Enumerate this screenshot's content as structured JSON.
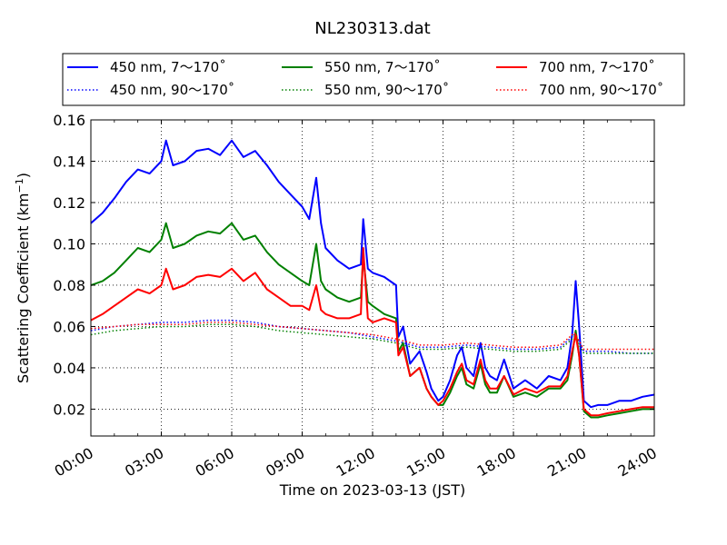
{
  "chart_data": {
    "type": "line",
    "title": "NL230313.dat",
    "xlabel": "Time on 2023-03-13 (JST)",
    "ylabel": "Scattering Coefficient (km",
    "ylabel_sup": "−1",
    "ylabel_tail": ")",
    "x_unit": "hour",
    "xlim": [
      0,
      24
    ],
    "ylim": [
      0.007,
      0.16
    ],
    "xticks": [
      0,
      3,
      6,
      9,
      12,
      15,
      18,
      21,
      24
    ],
    "xtick_labels": [
      "00:00",
      "03:00",
      "06:00",
      "09:00",
      "12:00",
      "15:00",
      "18:00",
      "21:00",
      "24:00"
    ],
    "yticks": [
      0.02,
      0.04,
      0.06,
      0.08,
      0.1,
      0.12,
      0.14,
      0.16
    ],
    "ytick_labels": [
      "0.02",
      "0.04",
      "0.06",
      "0.08",
      "0.10",
      "0.12",
      "0.14",
      "0.16"
    ],
    "grid": true,
    "legend_position": "top, above plot",
    "series": [
      {
        "name": "450 nm, 7～170˚",
        "color": "#0000ff",
        "style": "solid",
        "x": [
          0,
          0.5,
          1,
          1.5,
          2,
          2.5,
          3,
          3.2,
          3.5,
          4,
          4.5,
          5,
          5.5,
          6,
          6.5,
          7,
          7.5,
          8,
          8.5,
          9,
          9.3,
          9.6,
          9.8,
          10,
          10.5,
          11,
          11.5,
          11.6,
          11.8,
          12,
          12.5,
          13,
          13.1,
          13.3,
          13.6,
          14,
          14.3,
          14.5,
          14.8,
          15,
          15.3,
          15.6,
          15.8,
          16,
          16.3,
          16.6,
          16.8,
          17,
          17.3,
          17.6,
          18,
          18.5,
          19,
          19.5,
          20,
          20.3,
          20.5,
          20.65,
          20.8,
          21,
          21.3,
          21.6,
          22,
          22.5,
          23,
          23.5,
          24
        ],
        "y": [
          0.11,
          0.115,
          0.122,
          0.13,
          0.136,
          0.134,
          0.14,
          0.15,
          0.138,
          0.14,
          0.145,
          0.146,
          0.143,
          0.15,
          0.142,
          0.145,
          0.138,
          0.13,
          0.124,
          0.118,
          0.112,
          0.132,
          0.11,
          0.098,
          0.092,
          0.088,
          0.09,
          0.112,
          0.088,
          0.086,
          0.084,
          0.08,
          0.055,
          0.06,
          0.042,
          0.048,
          0.038,
          0.03,
          0.024,
          0.026,
          0.034,
          0.046,
          0.05,
          0.04,
          0.036,
          0.052,
          0.04,
          0.036,
          0.034,
          0.044,
          0.03,
          0.034,
          0.03,
          0.036,
          0.034,
          0.04,
          0.056,
          0.082,
          0.06,
          0.024,
          0.021,
          0.022,
          0.022,
          0.024,
          0.024,
          0.026,
          0.027
        ]
      },
      {
        "name": "450 nm, 90～170˚",
        "color": "#0000ff",
        "style": "dotted",
        "x": [
          0,
          1,
          2,
          3,
          4,
          5,
          6,
          7,
          8,
          9,
          10,
          11,
          12,
          13,
          14,
          15,
          16,
          17,
          18,
          19,
          20,
          20.6,
          21,
          22,
          23,
          24
        ],
        "y": [
          0.058,
          0.06,
          0.061,
          0.062,
          0.062,
          0.063,
          0.063,
          0.062,
          0.06,
          0.059,
          0.058,
          0.057,
          0.055,
          0.053,
          0.05,
          0.05,
          0.051,
          0.05,
          0.049,
          0.049,
          0.05,
          0.056,
          0.048,
          0.048,
          0.047,
          0.047
        ]
      },
      {
        "name": "550 nm, 7～170˚",
        "color": "#008000",
        "style": "solid",
        "x": [
          0,
          0.5,
          1,
          1.5,
          2,
          2.5,
          3,
          3.2,
          3.5,
          4,
          4.5,
          5,
          5.5,
          6,
          6.5,
          7,
          7.5,
          8,
          8.5,
          9,
          9.3,
          9.6,
          9.8,
          10,
          10.5,
          11,
          11.5,
          11.6,
          11.8,
          12,
          12.5,
          13,
          13.1,
          13.3,
          13.6,
          14,
          14.3,
          14.5,
          14.8,
          15,
          15.3,
          15.6,
          15.8,
          16,
          16.3,
          16.6,
          16.8,
          17,
          17.3,
          17.6,
          18,
          18.5,
          19,
          19.5,
          20,
          20.3,
          20.5,
          20.65,
          20.8,
          21,
          21.3,
          21.6,
          22,
          22.5,
          23,
          23.5,
          24
        ],
        "y": [
          0.08,
          0.082,
          0.086,
          0.092,
          0.098,
          0.096,
          0.102,
          0.11,
          0.098,
          0.1,
          0.104,
          0.106,
          0.105,
          0.11,
          0.102,
          0.104,
          0.096,
          0.09,
          0.086,
          0.082,
          0.08,
          0.1,
          0.082,
          0.078,
          0.074,
          0.072,
          0.074,
          0.094,
          0.072,
          0.07,
          0.066,
          0.064,
          0.048,
          0.052,
          0.036,
          0.04,
          0.03,
          0.026,
          0.022,
          0.022,
          0.028,
          0.036,
          0.04,
          0.032,
          0.03,
          0.042,
          0.032,
          0.028,
          0.028,
          0.036,
          0.026,
          0.028,
          0.026,
          0.03,
          0.03,
          0.034,
          0.046,
          0.058,
          0.046,
          0.019,
          0.016,
          0.016,
          0.017,
          0.018,
          0.019,
          0.02,
          0.02
        ]
      },
      {
        "name": "550 nm, 90～170˚",
        "color": "#008000",
        "style": "dotted",
        "x": [
          0,
          1,
          2,
          3,
          4,
          5,
          6,
          7,
          8,
          9,
          10,
          11,
          12,
          13,
          14,
          15,
          16,
          17,
          18,
          19,
          20,
          20.6,
          21,
          22,
          23,
          24
        ],
        "y": [
          0.056,
          0.058,
          0.059,
          0.06,
          0.06,
          0.061,
          0.061,
          0.06,
          0.058,
          0.057,
          0.056,
          0.055,
          0.054,
          0.052,
          0.049,
          0.049,
          0.05,
          0.049,
          0.048,
          0.048,
          0.049,
          0.055,
          0.047,
          0.047,
          0.047,
          0.047
        ]
      },
      {
        "name": "700 nm, 7～170˚",
        "color": "#ff0000",
        "style": "solid",
        "x": [
          0,
          0.5,
          1,
          1.5,
          2,
          2.5,
          3,
          3.2,
          3.5,
          4,
          4.5,
          5,
          5.5,
          6,
          6.5,
          7,
          7.5,
          8,
          8.5,
          9,
          9.3,
          9.6,
          9.8,
          10,
          10.5,
          11,
          11.5,
          11.6,
          11.8,
          12,
          12.5,
          13,
          13.1,
          13.3,
          13.6,
          14,
          14.3,
          14.5,
          14.8,
          15,
          15.3,
          15.6,
          15.8,
          16,
          16.3,
          16.6,
          16.8,
          17,
          17.3,
          17.6,
          18,
          18.5,
          19,
          19.5,
          20,
          20.3,
          20.5,
          20.65,
          20.8,
          21,
          21.3,
          21.6,
          22,
          22.5,
          23,
          23.5,
          24
        ],
        "y": [
          0.063,
          0.066,
          0.07,
          0.074,
          0.078,
          0.076,
          0.08,
          0.088,
          0.078,
          0.08,
          0.084,
          0.085,
          0.084,
          0.088,
          0.082,
          0.086,
          0.078,
          0.074,
          0.07,
          0.07,
          0.068,
          0.08,
          0.068,
          0.066,
          0.064,
          0.064,
          0.066,
          0.098,
          0.064,
          0.062,
          0.064,
          0.062,
          0.046,
          0.05,
          0.036,
          0.04,
          0.03,
          0.026,
          0.022,
          0.024,
          0.03,
          0.038,
          0.042,
          0.034,
          0.032,
          0.044,
          0.034,
          0.03,
          0.03,
          0.036,
          0.027,
          0.03,
          0.028,
          0.031,
          0.031,
          0.036,
          0.048,
          0.056,
          0.046,
          0.02,
          0.017,
          0.017,
          0.018,
          0.019,
          0.02,
          0.021,
          0.021
        ]
      },
      {
        "name": "700 nm, 90～170˚",
        "color": "#ff0000",
        "style": "dotted",
        "x": [
          0,
          1,
          2,
          3,
          4,
          5,
          6,
          7,
          8,
          9,
          10,
          11,
          12,
          13,
          14,
          15,
          16,
          17,
          18,
          19,
          20,
          20.6,
          21,
          22,
          23,
          24
        ],
        "y": [
          0.059,
          0.06,
          0.061,
          0.061,
          0.061,
          0.062,
          0.062,
          0.061,
          0.06,
          0.059,
          0.058,
          0.057,
          0.056,
          0.054,
          0.051,
          0.051,
          0.052,
          0.051,
          0.05,
          0.05,
          0.051,
          0.057,
          0.049,
          0.049,
          0.049,
          0.049
        ]
      }
    ]
  }
}
